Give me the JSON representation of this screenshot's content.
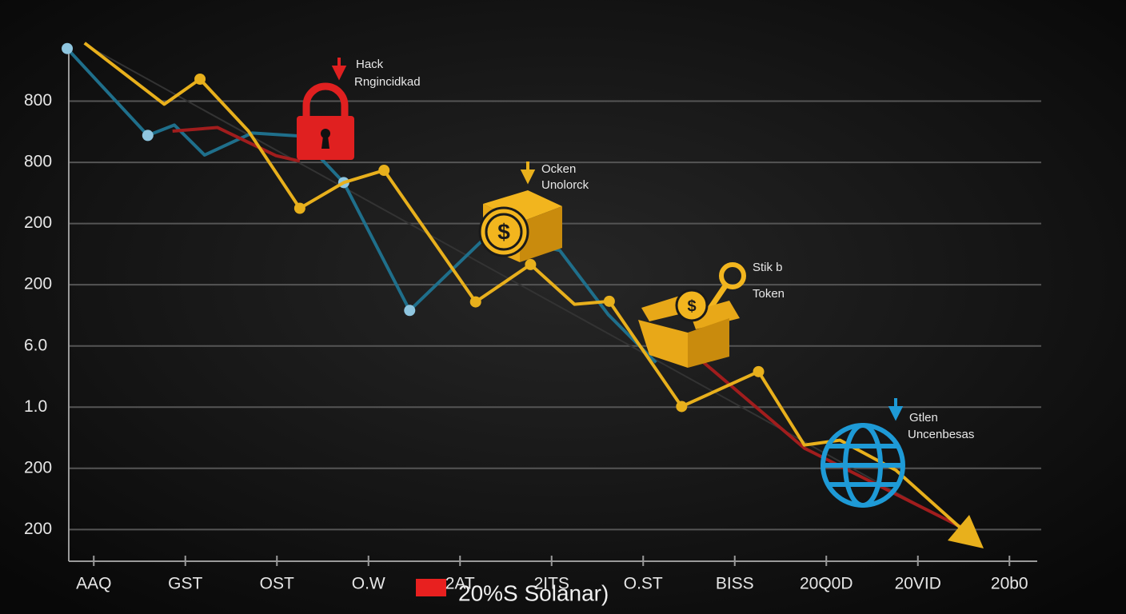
{
  "chart_data": {
    "type": "line",
    "xlim": [
      -0.5,
      10.5
    ],
    "xticks": [
      {
        "value": 0,
        "label": "AAQ"
      },
      {
        "value": 1,
        "label": "GST"
      },
      {
        "value": 2,
        "label": "OST"
      },
      {
        "value": 3,
        "label": "O.W"
      },
      {
        "value": 4,
        "label": "2AT"
      },
      {
        "value": 5,
        "label": "2ITS"
      },
      {
        "value": 6,
        "label": "O.ST"
      },
      {
        "value": 7,
        "label": "BISS"
      },
      {
        "value": 8,
        "label": "20Q0D"
      },
      {
        "value": 9,
        "label": "20VID"
      },
      {
        "value": 10,
        "label": "20b0"
      }
    ],
    "ylim": [
      0.5,
      9
    ],
    "yticks": [
      {
        "value": 8,
        "label": "800"
      },
      {
        "value": 7,
        "label": "800"
      },
      {
        "value": 6,
        "label": "200"
      },
      {
        "value": 5,
        "label": "200"
      },
      {
        "value": 4,
        "label": "6.0"
      },
      {
        "value": 3,
        "label": "1.0"
      },
      {
        "value": 2,
        "label": "200"
      },
      {
        "value": 1,
        "label": "200"
      }
    ],
    "grid": true,
    "series": [
      {
        "color": "#1f6f8b",
        "x": [
          -0.29,
          0.59,
          0.88,
          1.21,
          1.73,
          2.25,
          2.73,
          3.45,
          4.31,
          5.09,
          5.62,
          6.14
        ],
        "values": [
          8.86,
          7.44,
          7.61,
          7.12,
          7.48,
          7.43,
          6.67,
          4.58,
          5.82,
          5.56,
          4.51,
          3.73
        ],
        "markers": [
          0,
          1,
          6,
          7
        ],
        "marker_color": "#8fc6e0"
      },
      {
        "color": "#a11d1d",
        "x": [
          0.86,
          1.35,
          1.99,
          2.25,
          4.5,
          6.66,
          7.76,
          9.46
        ],
        "values": [
          7.51,
          7.57,
          7.11,
          7.02,
          null,
          3.73,
          2.33,
          1.05
        ],
        "markers": [],
        "marker_color": "#a11d1d"
      },
      {
        "color": "#e8b01c",
        "x": [
          -0.1,
          0.77,
          1.16,
          1.69,
          2.25,
          2.73,
          3.17,
          4.17,
          4.77,
          5.25,
          5.63,
          6.42,
          7.26,
          7.76,
          8.15,
          8.76,
          9.59
        ],
        "values": [
          8.95,
          7.95,
          8.36,
          7.51,
          6.25,
          6.67,
          6.87,
          4.72,
          5.33,
          4.68,
          4.73,
          3.01,
          3.58,
          2.38,
          2.46,
          1.97,
          0.86
        ],
        "markers": [
          2,
          4,
          6,
          7,
          8,
          10,
          11,
          12
        ],
        "marker_color": "#e8b01c"
      }
    ],
    "annotations": [
      "Hack",
      "Rngincidkad",
      "Ocken",
      "Unolorck",
      "Stik b",
      "Token",
      "Gtlen",
      "Uncenbesas"
    ],
    "legend": {
      "label": "20%S Solanar)",
      "color": "#e8201f"
    }
  }
}
